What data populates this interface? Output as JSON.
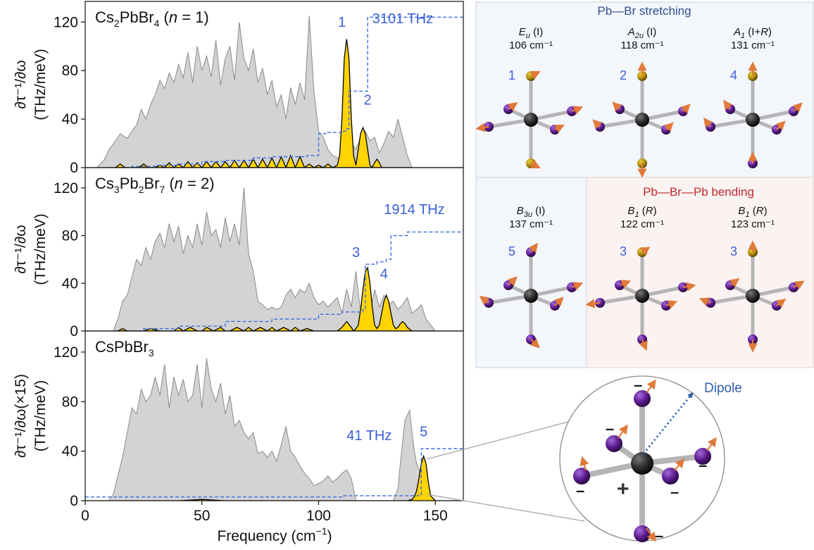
{
  "figure": {
    "xlabel": "Frequency (cm",
    "xlabel_sup": "−1",
    "xlabel_end": ")",
    "xticks": [
      "0",
      "50",
      "100",
      "150"
    ],
    "yticks": [
      "0",
      "40",
      "80",
      "120"
    ],
    "panels": [
      {
        "title_main": "Cs",
        "title_sub1": "2",
        "title_mid": "PbBr",
        "title_sub2": "4",
        "title_end": " (",
        "title_n": "n",
        "title_eq": " = 1)",
        "ylabel_top": "∂τ⁻¹/∂ω",
        "ylabel_bottom": "(THz/meV)",
        "cumulative_label": "3101 THz",
        "peak_labels": [
          "1",
          "2"
        ]
      },
      {
        "title_main": "Cs",
        "title_sub1": "3",
        "title_mid": "Pb",
        "title_sub2": "2",
        "title_mid2": "Br",
        "title_sub3": "7",
        "title_end": " (",
        "title_n": "n",
        "title_eq": " = 2)",
        "ylabel_top": "∂τ⁻¹/∂ω",
        "ylabel_bottom": "(THz/meV)",
        "cumulative_label": "1914 THz",
        "peak_labels": [
          "3",
          "4"
        ]
      },
      {
        "title_main": "CsPbBr",
        "title_sub1": "3",
        "ylabel_top": "∂τ⁻¹/∂ω(×15)",
        "ylabel_bottom": "(THz/meV)",
        "cumulative_label": "41 THz",
        "peak_labels": [
          "5"
        ]
      }
    ]
  },
  "modes": {
    "stretching_title": "Pb—Br stretching",
    "bending_title": "Pb—Br—Pb bending",
    "items": [
      {
        "sym": "E",
        "sub": "u",
        "act": " (I)",
        "freq": "106 cm⁻¹",
        "num": "1"
      },
      {
        "sym": "A",
        "sub": "2u",
        "act": " (I)",
        "freq": "118 cm⁻¹",
        "num": "2"
      },
      {
        "sym": "A",
        "sub": "1",
        "act": " (I+",
        "act_r": "R",
        "act_end": ")",
        "freq": "131 cm⁻¹",
        "num": "4"
      },
      {
        "sym": "B",
        "sub": "3u",
        "act": " (I)",
        "freq": "137 cm⁻¹",
        "num": "5"
      },
      {
        "sym": "B",
        "sub": "1",
        "act": " (",
        "act_r": "R",
        "act_end": ")",
        "freq": "122 cm⁻¹",
        "num": "3"
      },
      {
        "sym": "B",
        "sub": "1",
        "act": " (",
        "act_r": "R",
        "act_end": ")",
        "freq": "123 cm⁻¹",
        "num": "3"
      }
    ]
  },
  "dipole": {
    "label": "Dipole",
    "minus_signs": [
      "–",
      "–",
      "–",
      "–",
      "–",
      "–"
    ],
    "plus_sign": "+"
  },
  "colors": {
    "gray_fill": "#d3d3d3",
    "gray_line": "#8a8a8a",
    "gold_fill": "#ffd400",
    "dashed_blue": "#3b6ee0",
    "label_blue": "#3b5fd9",
    "pb_atom": "#2b2b2b",
    "br_atom": "#5b1a8c",
    "cs_atom": "#b08d0a",
    "arrow": "#e07a3a",
    "stretch_bg": "#f3f6fb",
    "bend_bg": "#fbf3f1",
    "stretch_title": "#2f4f8f",
    "bend_title": "#c0282c"
  },
  "chart_data": [
    {
      "type": "area",
      "title": "Cs2PbBr4 (n = 1)",
      "xlabel": "Frequency (cm−1)",
      "ylabel": "∂τ⁻¹/∂ω (THz/meV)",
      "xlim": [
        0,
        162
      ],
      "ylim": [
        0,
        137
      ],
      "series": [
        {
          "name": "gray",
          "x": [
            5,
            8,
            10,
            13,
            15,
            18,
            20,
            22,
            24,
            26,
            28,
            30,
            32,
            34,
            36,
            38,
            40,
            42,
            44,
            46,
            48,
            50,
            52,
            54,
            56,
            58,
            60,
            62,
            64,
            66,
            68,
            70,
            72,
            74,
            76,
            78,
            80,
            82,
            84,
            86,
            88,
            90,
            92,
            94,
            96,
            98,
            100,
            102,
            104,
            106,
            108,
            110,
            112,
            114,
            116,
            118,
            120,
            122,
            124,
            126,
            128,
            130,
            132,
            134,
            136,
            138,
            140
          ],
          "y": [
            0,
            6,
            14,
            22,
            28,
            24,
            30,
            35,
            48,
            40,
            52,
            60,
            72,
            65,
            78,
            70,
            85,
            74,
            95,
            70,
            100,
            80,
            92,
            75,
            105,
            68,
            90,
            100,
            72,
            120,
            90,
            80,
            98,
            70,
            82,
            60,
            72,
            50,
            60,
            40,
            66,
            52,
            70,
            56,
            125,
            62,
            30,
            25,
            15,
            10,
            8,
            5,
            12,
            20,
            15,
            25,
            30,
            22,
            25,
            12,
            20,
            30,
            25,
            40,
            25,
            10,
            0
          ]
        },
        {
          "name": "gold",
          "x": [
            10,
            13,
            15,
            17,
            20,
            23,
            25,
            27,
            30,
            32,
            34,
            36,
            38,
            40,
            42,
            44,
            46,
            48,
            50,
            52,
            54,
            56,
            58,
            60,
            62,
            64,
            66,
            68,
            70,
            72,
            74,
            76,
            78,
            80,
            82,
            84,
            86,
            88,
            90,
            92,
            94,
            96,
            98,
            100,
            102,
            104,
            106,
            108,
            109,
            110,
            111,
            112,
            113,
            114,
            115,
            116,
            117,
            118,
            119,
            120,
            121,
            122,
            123,
            124,
            125,
            126,
            127,
            128,
            129,
            130,
            132,
            135,
            140
          ],
          "y": [
            0,
            0,
            3,
            0,
            0,
            0,
            3,
            0,
            0,
            2,
            0,
            4,
            0,
            3,
            0,
            5,
            0,
            4,
            0,
            5,
            0,
            5,
            0,
            5,
            0,
            6,
            0,
            6,
            0,
            7,
            0,
            7,
            0,
            8,
            0,
            9,
            0,
            10,
            0,
            9,
            0,
            3,
            0,
            2,
            0,
            3,
            0,
            2,
            10,
            40,
            90,
            106,
            90,
            40,
            10,
            2,
            15,
            28,
            33,
            28,
            15,
            2,
            0,
            4,
            7,
            4,
            0,
            0,
            0,
            0,
            0,
            0,
            0
          ]
        }
      ],
      "cumulative_label": "3101 THz"
    },
    {
      "type": "area",
      "title": "Cs3Pb2Br7 (n = 2)",
      "xlabel": "Frequency (cm−1)",
      "ylabel": "∂τ⁻¹/∂ω (THz/meV)",
      "xlim": [
        0,
        162
      ],
      "ylim": [
        0,
        137
      ],
      "series": [
        {
          "name": "gray",
          "x": [
            12,
            14,
            16,
            18,
            20,
            22,
            24,
            26,
            28,
            30,
            32,
            34,
            36,
            38,
            40,
            42,
            44,
            46,
            48,
            50,
            52,
            54,
            56,
            58,
            60,
            62,
            64,
            66,
            68,
            70,
            72,
            74,
            76,
            78,
            80,
            82,
            84,
            86,
            88,
            90,
            92,
            94,
            96,
            98,
            100,
            102,
            104,
            106,
            108,
            110,
            112,
            114,
            116,
            118,
            120,
            122,
            124,
            126,
            128,
            130,
            132,
            134,
            136,
            138,
            140,
            142,
            144,
            146,
            148,
            150
          ],
          "y": [
            0,
            10,
            25,
            30,
            45,
            60,
            55,
            70,
            60,
            75,
            82,
            70,
            90,
            75,
            88,
            65,
            80,
            70,
            90,
            72,
            100,
            80,
            85,
            70,
            95,
            75,
            90,
            72,
            120,
            65,
            50,
            25,
            22,
            18,
            20,
            18,
            20,
            30,
            35,
            28,
            35,
            32,
            40,
            28,
            22,
            25,
            20,
            24,
            28,
            15,
            35,
            20,
            50,
            15,
            20,
            15,
            35,
            20,
            30,
            22,
            25,
            18,
            22,
            28,
            15,
            18,
            22,
            10,
            5,
            0
          ]
        },
        {
          "name": "gold",
          "x": [
            12,
            14,
            16,
            18,
            20,
            25,
            28,
            32,
            35,
            38,
            40,
            42,
            45,
            48,
            50,
            52,
            55,
            58,
            60,
            62,
            65,
            68,
            70,
            72,
            75,
            78,
            80,
            82,
            85,
            88,
            90,
            92,
            95,
            98,
            100,
            105,
            108,
            110,
            112,
            114,
            115,
            116,
            117,
            118,
            119,
            120,
            121,
            122,
            123,
            124,
            125,
            126,
            127,
            128,
            129,
            130,
            131,
            132,
            133,
            134,
            135,
            136,
            137,
            138,
            140,
            142,
            145,
            150
          ],
          "y": [
            0,
            0,
            2,
            0,
            0,
            0,
            2,
            0,
            0,
            0,
            3,
            0,
            3,
            0,
            0,
            3,
            0,
            3,
            0,
            0,
            3,
            0,
            3,
            0,
            3,
            0,
            3,
            0,
            3,
            0,
            3,
            0,
            2,
            0,
            0,
            0,
            0,
            3,
            8,
            3,
            0,
            2,
            5,
            18,
            35,
            50,
            53,
            40,
            20,
            5,
            2,
            5,
            15,
            25,
            30,
            25,
            15,
            5,
            2,
            3,
            6,
            8,
            6,
            3,
            0,
            0,
            0,
            0
          ]
        }
      ],
      "cumulative_label": "1914 THz"
    },
    {
      "type": "area",
      "title": "CsPbBr3",
      "xlabel": "Frequency (cm−1)",
      "ylabel": "∂τ⁻¹/∂ω(×15) (THz/meV)",
      "xlim": [
        0,
        162
      ],
      "ylim": [
        0,
        137
      ],
      "series": [
        {
          "name": "gray",
          "x": [
            10,
            12,
            14,
            16,
            18,
            20,
            22,
            24,
            26,
            28,
            30,
            32,
            34,
            36,
            38,
            40,
            42,
            44,
            46,
            48,
            50,
            52,
            54,
            56,
            58,
            60,
            62,
            64,
            66,
            68,
            70,
            72,
            74,
            76,
            78,
            80,
            82,
            84,
            86,
            88,
            90,
            92,
            94,
            96,
            98,
            100,
            102,
            104,
            106,
            108,
            110,
            112,
            114,
            116,
            118,
            120,
            122,
            124,
            126,
            128,
            130,
            132,
            134,
            135,
            137,
            139,
            140,
            141,
            142,
            143,
            144,
            145,
            146,
            147,
            148
          ],
          "y": [
            0,
            5,
            20,
            35,
            55,
            75,
            70,
            90,
            80,
            85,
            100,
            85,
            110,
            75,
            100,
            85,
            98,
            80,
            85,
            110,
            75,
            115,
            90,
            80,
            95,
            70,
            85,
            60,
            65,
            55,
            50,
            55,
            38,
            40,
            35,
            40,
            32,
            45,
            60,
            40,
            35,
            28,
            22,
            18,
            12,
            14,
            16,
            20,
            15,
            18,
            22,
            25,
            18,
            0,
            0,
            0,
            0,
            0,
            0,
            0,
            0,
            0,
            10,
            30,
            65,
            73,
            55,
            40,
            30,
            25,
            20,
            10,
            5,
            2,
            0
          ]
        },
        {
          "name": "gold",
          "x": [
            0,
            20,
            40,
            50,
            60,
            80,
            100,
            110,
            120,
            130,
            138,
            140,
            141,
            142,
            143,
            144,
            145,
            146,
            147,
            148,
            150,
            162
          ],
          "y": [
            0,
            0,
            0,
            1,
            0,
            0,
            0,
            0,
            0,
            0,
            0,
            1,
            3,
            8,
            18,
            30,
            36,
            30,
            15,
            4,
            0,
            0
          ]
        }
      ],
      "cumulative_label": "41 THz"
    }
  ]
}
